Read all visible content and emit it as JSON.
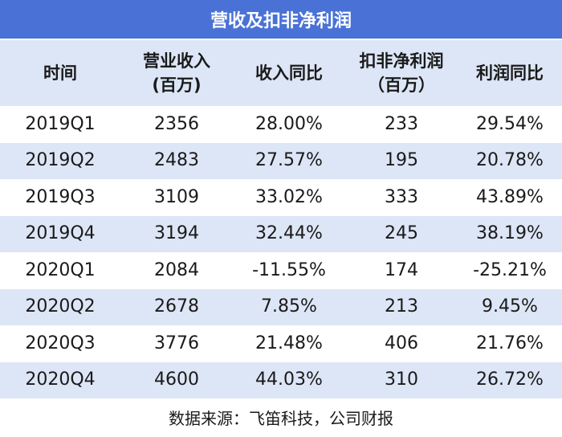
{
  "title": "营收及扣非净利润",
  "headers": {
    "period": "时间",
    "revenue_line1": "营业收入",
    "revenue_line2": "(百万)",
    "revenue_yoy": "收入同比",
    "profit_line1": "扣非净利润",
    "profit_line2": "（百万）",
    "profit_yoy": "利润同比"
  },
  "rows": [
    {
      "period": "2019Q1",
      "revenue": "2356",
      "revenue_yoy": "28.00%",
      "profit": "233",
      "profit_yoy": "29.54%"
    },
    {
      "period": "2019Q2",
      "revenue": "2483",
      "revenue_yoy": "27.57%",
      "profit": "195",
      "profit_yoy": "20.78%"
    },
    {
      "period": "2019Q3",
      "revenue": "3109",
      "revenue_yoy": "33.02%",
      "profit": "333",
      "profit_yoy": "43.89%"
    },
    {
      "period": "2019Q4",
      "revenue": "3194",
      "revenue_yoy": "32.44%",
      "profit": "245",
      "profit_yoy": "38.19%"
    },
    {
      "period": "2020Q1",
      "revenue": "2084",
      "revenue_yoy": "-11.55%",
      "profit": "174",
      "profit_yoy": "-25.21%"
    },
    {
      "period": "2020Q2",
      "revenue": "2678",
      "revenue_yoy": "7.85%",
      "profit": "213",
      "profit_yoy": "9.45%"
    },
    {
      "period": "2020Q3",
      "revenue": "3776",
      "revenue_yoy": "21.48%",
      "profit": "406",
      "profit_yoy": "21.76%"
    },
    {
      "period": "2020Q4",
      "revenue": "4600",
      "revenue_yoy": "44.03%",
      "profit": "310",
      "profit_yoy": "26.72%"
    }
  ],
  "source": "数据来源：飞笛科技，公司财报",
  "colors": {
    "title_bg": "#4a72d6",
    "shade": "#dde6f6"
  }
}
